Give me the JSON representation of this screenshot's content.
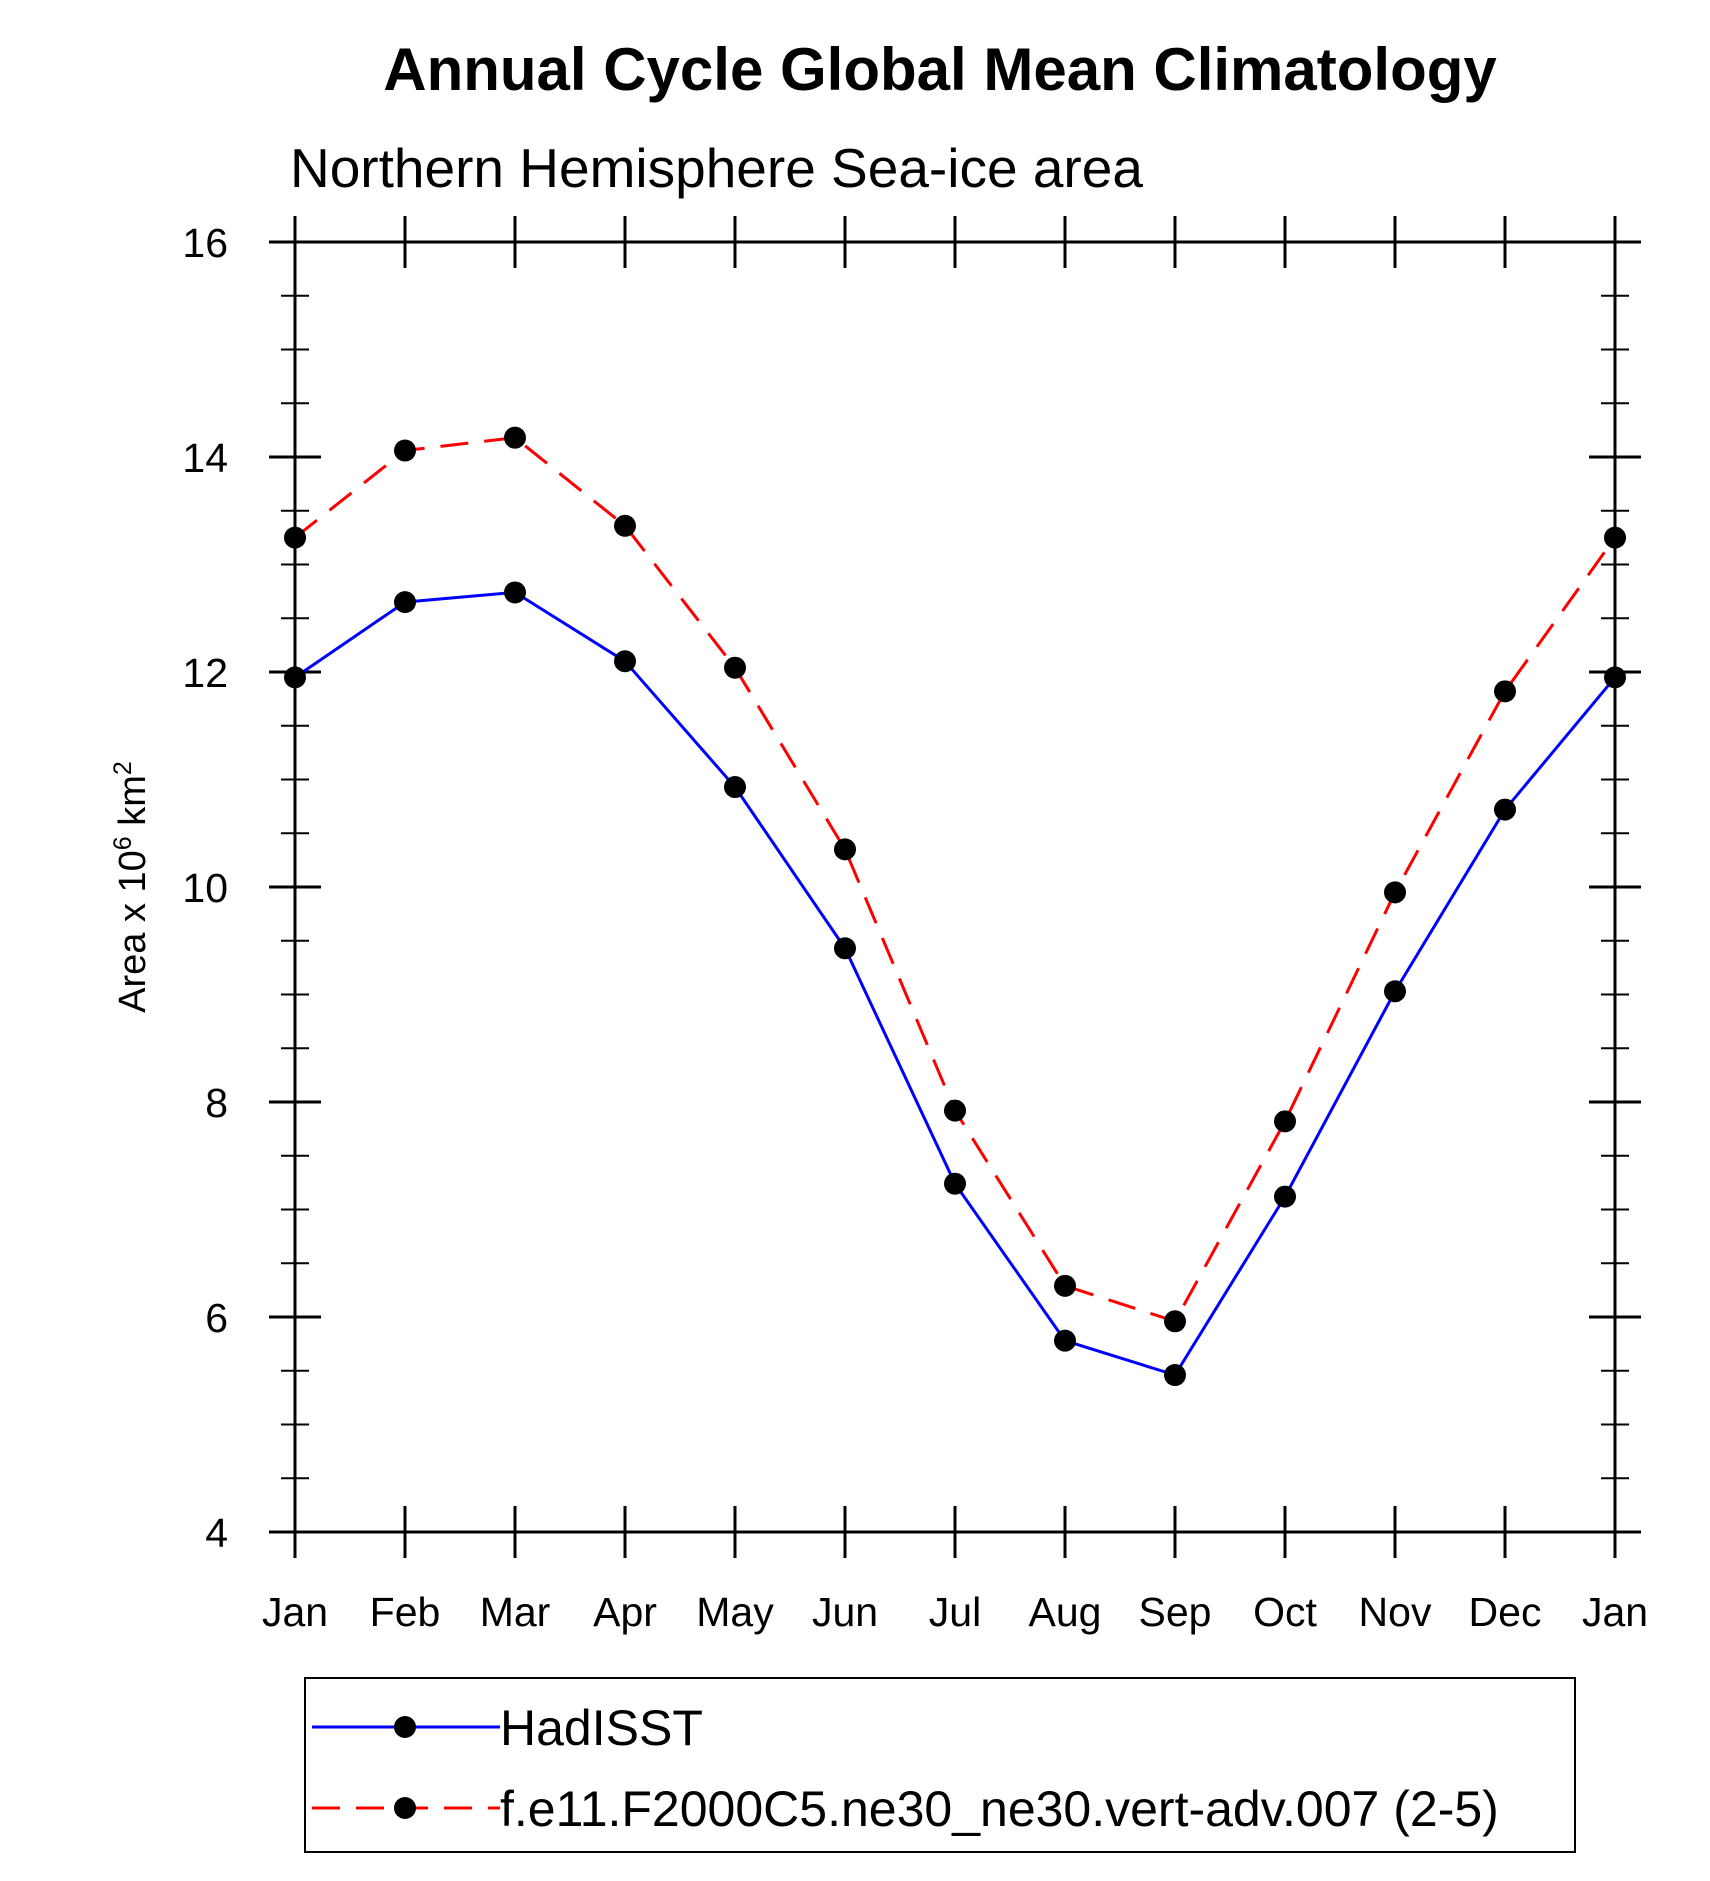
{
  "chart_data": {
    "type": "line",
    "title": "Annual Cycle Global Mean Climatology",
    "subtitle": "Northern Hemisphere Sea-ice area",
    "ylabel": {
      "prefix": "Area x 10",
      "exponent1": "6",
      "middle": " km",
      "exponent2": "2"
    },
    "xlabel": "",
    "categories": [
      "Jan",
      "Feb",
      "Mar",
      "Apr",
      "May",
      "Jun",
      "Jul",
      "Aug",
      "Sep",
      "Oct",
      "Nov",
      "Dec",
      "Jan"
    ],
    "ylim": [
      4,
      16
    ],
    "yticks": [
      "4",
      "6",
      "8",
      "10",
      "12",
      "14",
      "16"
    ],
    "grid": false,
    "legend_position": "bottom",
    "series": [
      {
        "name": "HadISST",
        "color": "#0000ff",
        "style": "solid",
        "values": [
          11.95,
          12.65,
          12.74,
          12.1,
          10.93,
          9.43,
          7.24,
          5.78,
          5.46,
          7.12,
          9.03,
          10.72,
          11.95
        ]
      },
      {
        "name": "f.e11.F2000C5.ne30_ne30.vert-adv.007 (2-5)",
        "color": "#ff0000",
        "style": "dashed",
        "values": [
          13.25,
          14.06,
          14.18,
          13.36,
          12.04,
          10.35,
          7.92,
          6.29,
          5.96,
          7.82,
          9.95,
          11.82,
          13.25
        ]
      }
    ]
  }
}
